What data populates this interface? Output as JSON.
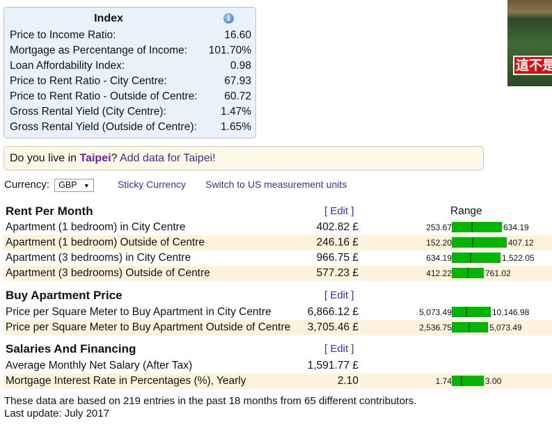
{
  "index": {
    "title": "Index",
    "info_icon": "info-icon",
    "rows": [
      {
        "label": "Price to Income Ratio:",
        "value": "16.60"
      },
      {
        "label": "Mortgage as Percentange of Income:",
        "value": "101.70%"
      },
      {
        "label": "Loan Affordability Index:",
        "value": "0.98"
      },
      {
        "label": "Price to Rent Ratio - City Centre:",
        "value": "67.93"
      },
      {
        "label": "Price to Rent Ratio - Outside of Centre:",
        "value": "60.72"
      },
      {
        "label": "Gross Rental Yield (City Centre):",
        "value": "1.47%"
      },
      {
        "label": "Gross Rental Yield (Outside of Centre):",
        "value": "1.65%"
      }
    ]
  },
  "notice": {
    "prefix": "Do you live in ",
    "city": "Taipei",
    "suffix": "?",
    "link": " Add data for Taipei!"
  },
  "currency": {
    "label": "Currency:",
    "selected": "GBP",
    "sticky": "Sticky Currency",
    "units": "Switch to US measurement units"
  },
  "range_header": "Range",
  "colors": {
    "bar": "#06b406",
    "marker": "#0a6a0a",
    "alt_row": "#fdf3dc"
  },
  "sections": [
    {
      "title": "Rent Per Month",
      "edit": "[ Edit ]",
      "rows": [
        {
          "label": "Apartment (1 bedroom) in City Centre",
          "value": "402.82 £",
          "avg": 402.82,
          "min": "253.67",
          "max": "634.19"
        },
        {
          "label": "Apartment (1 bedroom) Outside of Centre",
          "value": "246.16 £",
          "avg": 246.16,
          "min": "152.20",
          "max": "407.12"
        },
        {
          "label": "Apartment (3 bedrooms) in City Centre",
          "value": "966.75 £",
          "avg": 966.75,
          "min": "634.19",
          "max": "1,522.05"
        },
        {
          "label": "Apartment (3 bedrooms) Outside of Centre",
          "value": "577.23 £",
          "avg": 577.23,
          "min": "412.22",
          "max": "761.02"
        }
      ]
    },
    {
      "title": "Buy Apartment Price",
      "edit": "[ Edit ]",
      "rows": [
        {
          "label": "Price per Square Meter to Buy Apartment in City Centre",
          "value": "6,866.12 £",
          "avg": 6866.12,
          "min": "5,073.49",
          "max": "10,146.98"
        },
        {
          "label": "Price per Square Meter to Buy Apartment Outside of Centre",
          "value": "3,705.46 £",
          "avg": 3705.46,
          "min": "2,536.75",
          "max": "5,073.49"
        }
      ]
    },
    {
      "title": "Salaries And Financing",
      "edit": "[ Edit ]",
      "rows": [
        {
          "label": "Average Monthly Net Salary (After Tax)",
          "value": "1,591.77 £"
        },
        {
          "label": "Mortgage Interest Rate in Percentages (%), Yearly",
          "value": "2.10",
          "avg": 2.1,
          "min": "1.74",
          "max": "3.00"
        }
      ]
    }
  ],
  "footer": {
    "line1": "These data are based on 219 entries in the past 18 months from 65 different contributors.",
    "line2": "Last update: July 2017"
  },
  "ad": {
    "caption": "這不是"
  }
}
